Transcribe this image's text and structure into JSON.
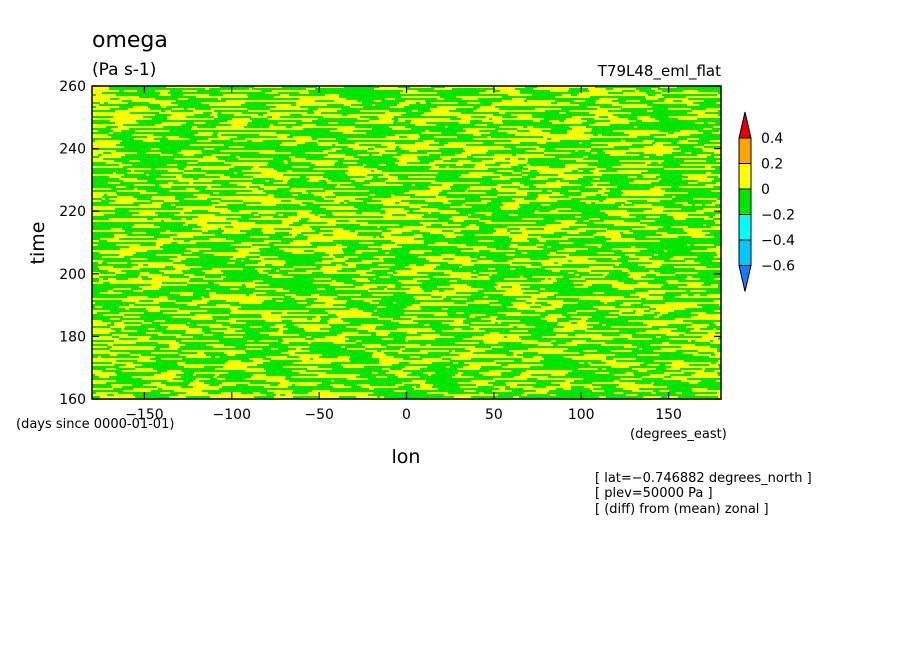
{
  "chart_data": {
    "type": "heatmap",
    "title": "omega",
    "units": "(Pa s-1)",
    "experiment": "T79L48_eml_flat",
    "xlabel": "lon",
    "xunits": "(degrees_east)",
    "ylabel": "time",
    "yunits": "(days since 0000-01-01)",
    "xlim": [
      -180,
      180
    ],
    "ylim": [
      160,
      260
    ],
    "xticks": [
      -150,
      -100,
      -50,
      0,
      50,
      100,
      150
    ],
    "yticks": [
      160,
      180,
      200,
      220,
      240,
      260
    ],
    "xtick_labels": [
      "−150",
      "−100",
      "−50",
      "0",
      "50",
      "100",
      "150"
    ],
    "ytick_labels": [
      "160",
      "180",
      "200",
      "220",
      "240",
      "260"
    ],
    "colorbar": {
      "levels": [
        -0.6,
        -0.4,
        -0.2,
        0,
        0.2,
        0.4
      ],
      "level_labels": [
        "−0.6",
        "−0.4",
        "−0.2",
        "0",
        "0.2",
        "0.4"
      ],
      "colors": [
        "#1e78ff",
        "#00c8ff",
        "#00ffff",
        "#00e600",
        "#ffff00",
        "#ffa500",
        "#e60000"
      ],
      "extend": "both"
    },
    "field": {
      "dominant_ranges": [
        "-0.2 to 0",
        "0 to 0.2"
      ],
      "description_colors": {
        "negative": "#00e600",
        "positive": "#ffff00"
      }
    },
    "notes": [
      "[ lat=−0.746882 degrees_north ]",
      "[ plev=50000 Pa ]",
      "[ (diff) from (mean) zonal ]"
    ]
  }
}
